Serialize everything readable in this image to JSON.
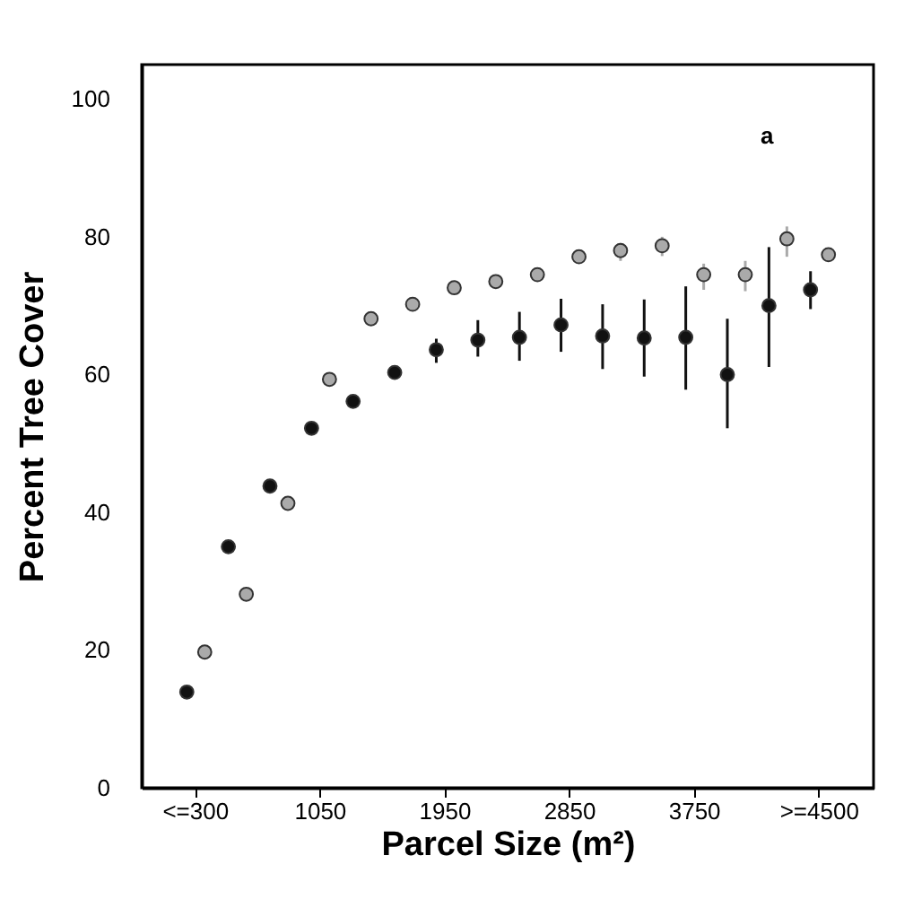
{
  "chart_data": {
    "type": "scatter",
    "xlabel": "Parcel Size (m²)",
    "ylabel": "Percent Tree Cover",
    "annotations": [
      "a"
    ],
    "categories": [
      "<=300",
      null,
      null,
      "1050",
      null,
      null,
      "1950",
      null,
      null,
      "2850",
      null,
      null,
      "3750",
      null,
      null,
      ">=4500"
    ],
    "ylim": [
      0,
      105
    ],
    "yticks": [
      0,
      20,
      40,
      60,
      80,
      100
    ],
    "grid": false,
    "marker": "circle",
    "series": [
      {
        "color": "#111111",
        "values": [
          13.9,
          35.0,
          43.8,
          52.2,
          56.1,
          60.3,
          63.6,
          65.0,
          65.4,
          67.2,
          65.6,
          65.3,
          65.4,
          60.0,
          70.0,
          72.3
        ],
        "errors": [
          null,
          null,
          null,
          null,
          null,
          null,
          [
            61.7,
            65.2
          ],
          [
            62.6,
            67.9
          ],
          [
            62.0,
            69.1
          ],
          [
            63.3,
            71.0
          ],
          [
            60.8,
            70.2
          ],
          [
            59.7,
            70.9
          ],
          [
            57.8,
            72.8
          ],
          [
            52.2,
            68.1
          ],
          [
            61.1,
            78.5
          ],
          [
            69.5,
            75.0
          ]
        ]
      },
      {
        "color": "#aaaaaa",
        "values": [
          19.7,
          28.1,
          41.3,
          59.3,
          68.1,
          70.2,
          72.6,
          73.5,
          74.5,
          77.1,
          78.0,
          78.7,
          74.5,
          74.5,
          79.7,
          77.4
        ],
        "errors": [
          null,
          null,
          null,
          null,
          null,
          null,
          null,
          null,
          null,
          null,
          [
            76.5,
            79.1
          ],
          [
            77.2,
            80.0
          ],
          [
            72.3,
            76.1
          ],
          [
            72.1,
            76.5
          ],
          [
            77.1,
            81.5
          ],
          null
        ]
      }
    ]
  }
}
